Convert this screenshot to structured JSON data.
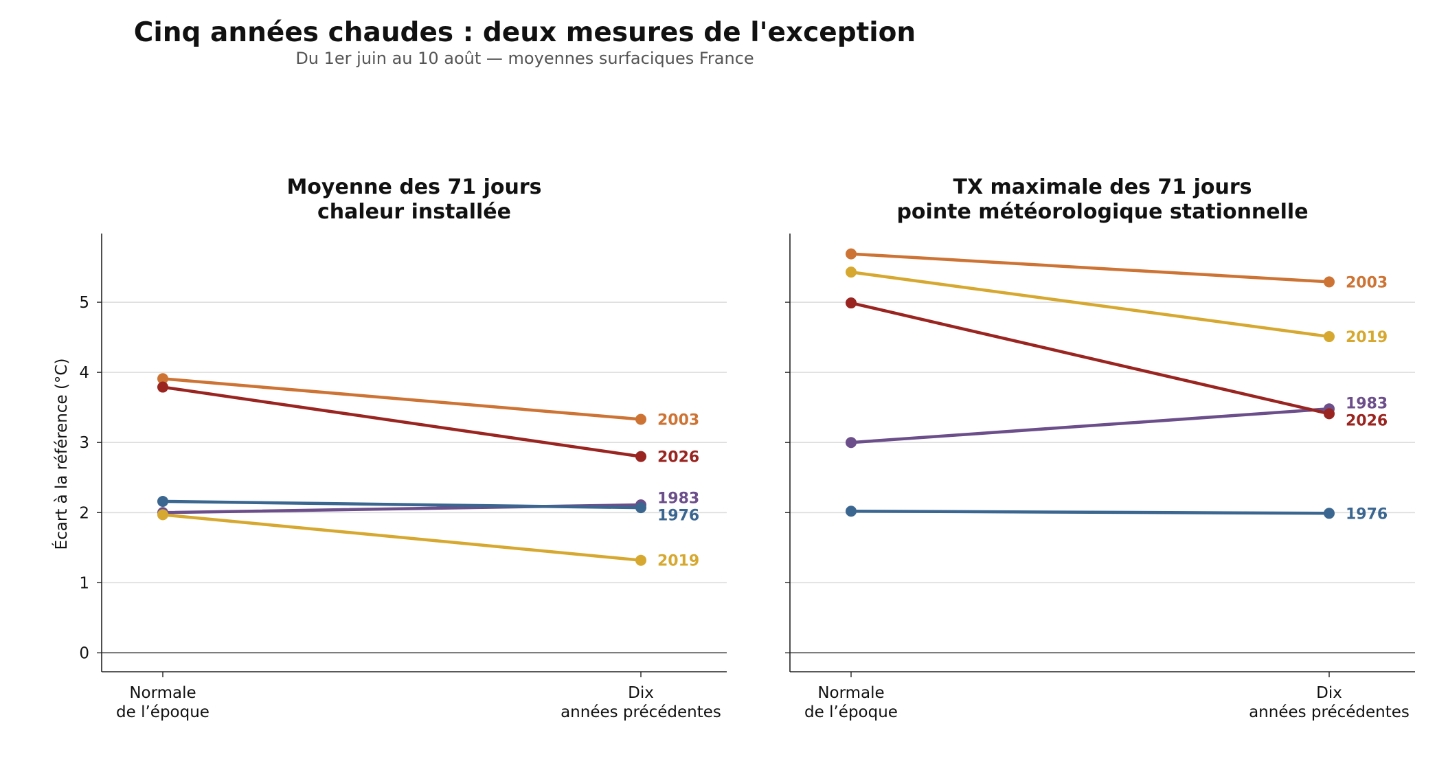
{
  "figure": {
    "title": "Cinq années chaudes : deux mesures de l'exception",
    "subtitle": "Du 1er juin au 10 août — moyennes surfaciques France"
  },
  "chart_data": [
    {
      "type": "line",
      "title": "Moyenne des 71 jours\nchaleur installée",
      "xlabel": "",
      "ylabel": "Écart à la référence (°C)",
      "categories": [
        "Normale\nde l’époque",
        "Dix\nannées précédentes"
      ],
      "ylim": [
        -0.27,
        5.98
      ],
      "yticks": [
        0,
        1,
        2,
        3,
        4,
        5
      ],
      "grid": "y",
      "legend": "direct labels at right end",
      "series": [
        {
          "name": "2003",
          "color": "#cd7334",
          "values": [
            3.91,
            3.33
          ]
        },
        {
          "name": "2026",
          "color": "#992420",
          "values": [
            3.79,
            2.8
          ]
        },
        {
          "name": "1983",
          "color": "#6b4e8a",
          "values": [
            2.0,
            2.11
          ]
        },
        {
          "name": "1976",
          "color": "#3a6690",
          "values": [
            2.16,
            2.07
          ]
        },
        {
          "name": "2019",
          "color": "#d6a82f",
          "values": [
            1.97,
            1.32
          ]
        }
      ]
    },
    {
      "type": "line",
      "title": "TX maximale des 71 jours\npointe météorologique stationnelle",
      "xlabel": "",
      "ylabel": "",
      "categories": [
        "Normale\nde l’époque",
        "Dix\nannées précédentes"
      ],
      "ylim": [
        -0.27,
        5.98
      ],
      "yticks": [
        0,
        1,
        2,
        3,
        4,
        5
      ],
      "grid": "y",
      "legend": "direct labels at right end",
      "series": [
        {
          "name": "2003",
          "color": "#cd7334",
          "values": [
            5.69,
            5.29
          ]
        },
        {
          "name": "2019",
          "color": "#d6a82f",
          "values": [
            5.43,
            4.51
          ]
        },
        {
          "name": "1983",
          "color": "#6b4e8a",
          "values": [
            3.0,
            3.48
          ]
        },
        {
          "name": "2026",
          "color": "#992420",
          "values": [
            4.99,
            3.41
          ]
        },
        {
          "name": "1976",
          "color": "#3a6690",
          "values": [
            2.02,
            1.99
          ]
        }
      ]
    }
  ]
}
